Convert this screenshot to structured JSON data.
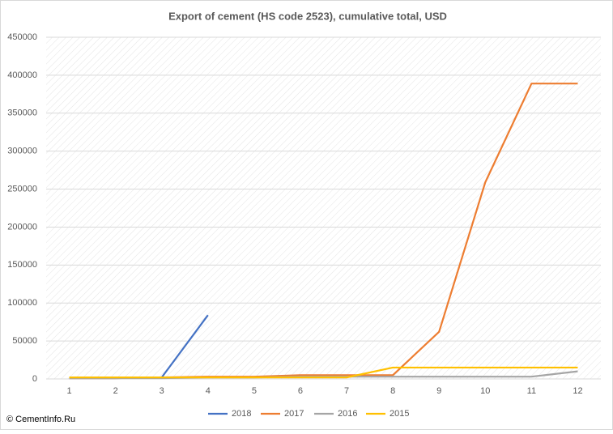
{
  "chart_data": {
    "type": "line",
    "title": "Export of cement (HS code 2523), cumulative total, USD",
    "categories": [
      "1",
      "2",
      "3",
      "4",
      "5",
      "6",
      "7",
      "8",
      "9",
      "10",
      "11",
      "12"
    ],
    "series": [
      {
        "name": "2018",
        "color": "#4472c4",
        "values": [
          1000,
          1000,
          2000,
          84000,
          null,
          null,
          null,
          null,
          null,
          null,
          null,
          null
        ]
      },
      {
        "name": "2017",
        "color": "#ed7d31",
        "values": [
          1000,
          1000,
          2000,
          3000,
          3000,
          5000,
          5000,
          5000,
          62000,
          259000,
          389000,
          389000
        ]
      },
      {
        "name": "2016",
        "color": "#a5a5a5",
        "values": [
          1000,
          1000,
          1000,
          2000,
          2000,
          3000,
          3000,
          3000,
          3000,
          3000,
          3000,
          10000
        ]
      },
      {
        "name": "2015",
        "color": "#ffc000",
        "values": [
          2000,
          2000,
          2000,
          2000,
          2000,
          2000,
          2000,
          15000,
          15000,
          15000,
          15000,
          15000
        ]
      }
    ],
    "ylim": [
      0,
      450000
    ],
    "yticks": [
      0,
      50000,
      100000,
      150000,
      200000,
      250000,
      300000,
      350000,
      400000,
      450000
    ],
    "grid": true,
    "legend": "bottom",
    "source": "© CementInfo.Ru"
  }
}
